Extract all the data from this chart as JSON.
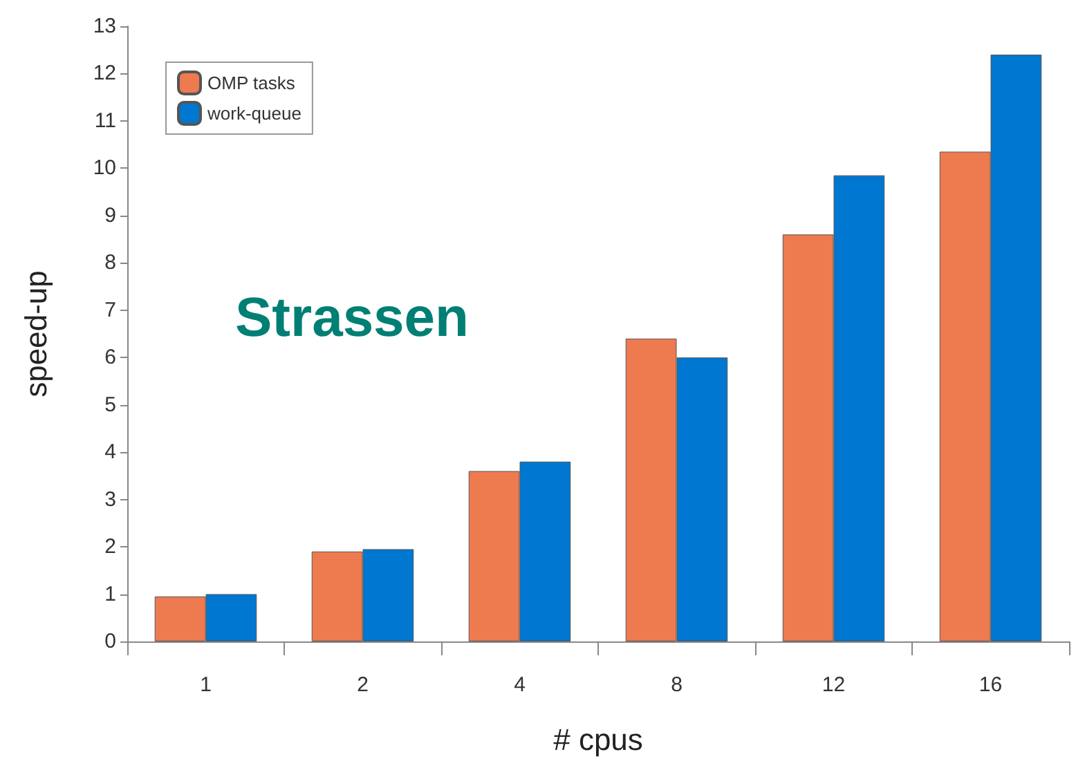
{
  "chart_data": {
    "type": "bar",
    "xlabel": "# cpus",
    "ylabel": "speed-up",
    "annotations": [
      "Strassen"
    ],
    "categories": [
      "1",
      "2",
      "4",
      "8",
      "12",
      "16"
    ],
    "series": [
      {
        "name": "OMP tasks",
        "color": "#ee7a50",
        "values": [
          0.95,
          1.9,
          3.6,
          6.4,
          8.6,
          10.35
        ]
      },
      {
        "name": "work-queue",
        "color": "#0077d0",
        "values": [
          1.0,
          1.95,
          3.8,
          6.0,
          9.85,
          12.4
        ]
      }
    ],
    "ylim": [
      0,
      13
    ],
    "yticks": [
      0,
      1,
      2,
      3,
      4,
      5,
      6,
      7,
      8,
      9,
      10,
      11,
      12,
      13
    ],
    "grid": false,
    "legend": "top left"
  }
}
